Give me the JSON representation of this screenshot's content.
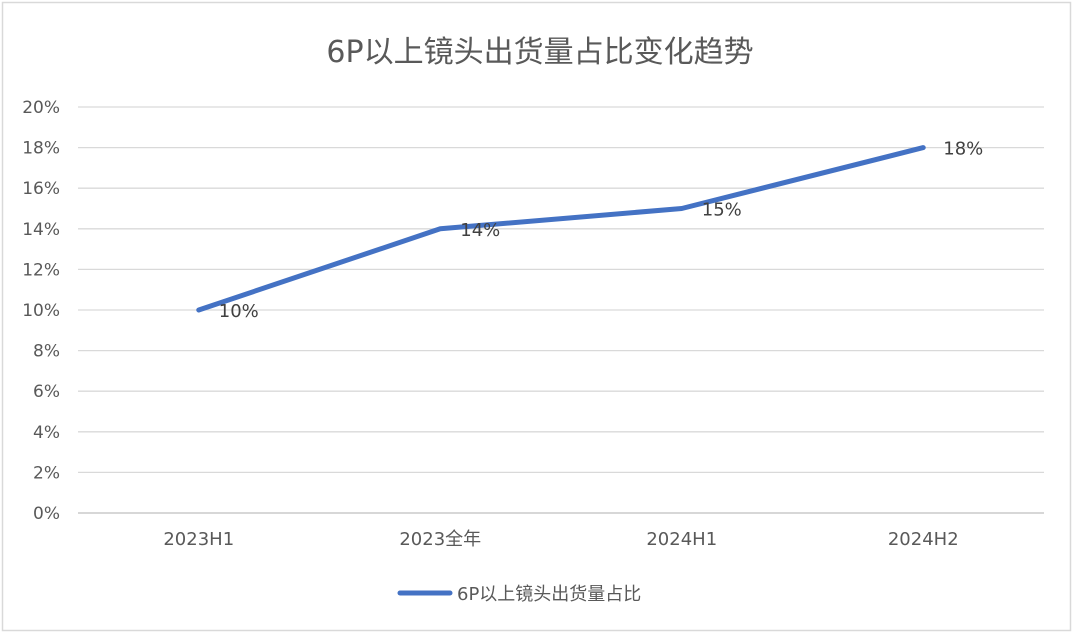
{
  "chart_data": {
    "type": "line",
    "title": "6P以上镜头出货量占比变化趋势",
    "xlabel": "",
    "ylabel": "",
    "categories": [
      "2023H1",
      "2023全年",
      "2024H1",
      "2024H2"
    ],
    "series": [
      {
        "name": "6P以上镜头出货量占比",
        "values": [
          10,
          14,
          15,
          18
        ],
        "data_labels": [
          "10%",
          "14%",
          "15%",
          "18%"
        ],
        "color": "#4472C4"
      }
    ],
    "ylim": [
      0,
      20
    ],
    "yticks": [
      "0%",
      "2%",
      "4%",
      "6%",
      "8%",
      "10%",
      "12%",
      "14%",
      "16%",
      "18%",
      "20%"
    ],
    "grid": true,
    "legend": "bottom"
  }
}
